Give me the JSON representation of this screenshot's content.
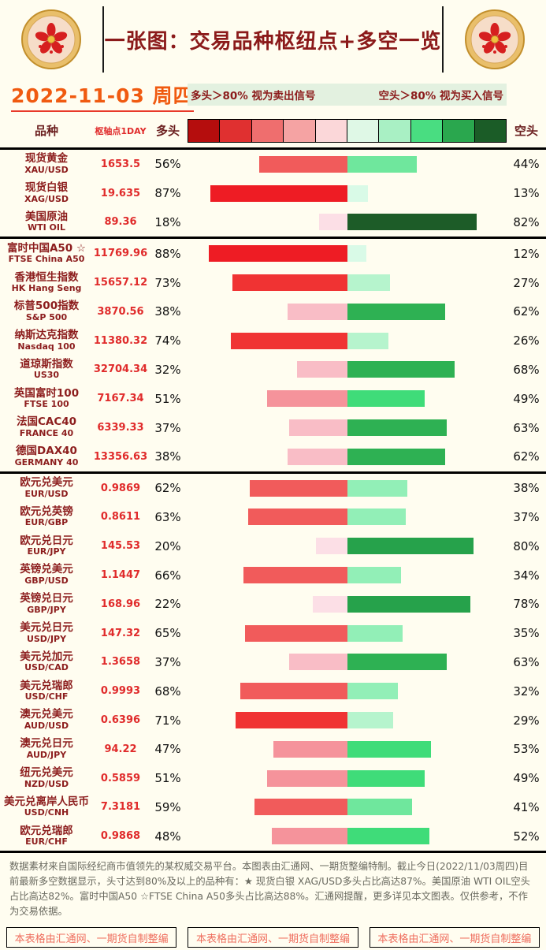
{
  "header": {
    "title": "一张图：交易品种枢纽点+多空一览",
    "date": "2022-11-03 周四",
    "legend_long": "多头＞80% 视为卖出信号",
    "legend_short": "空头＞80% 视为买入信号"
  },
  "columns": {
    "instrument": "品种",
    "pivot": "枢轴点1DAY",
    "long": "多头",
    "short": "空头"
  },
  "colors": {
    "page_bg": "#fffdf0",
    "title": "#8b1a1a",
    "date": "#f05a10",
    "legend_bg": "#e3f1e0",
    "pivot_text": "#e02b2b",
    "name_text": "#8c1d1d",
    "credit_text": "#ef6e5e"
  },
  "color_scale_swatches": [
    "#b50d0d",
    "#e03030",
    "#ef6e6e",
    "#f5a3a3",
    "#fbd7d9",
    "#dff8e6",
    "#a9f0c4",
    "#49dd81",
    "#2aa74e",
    "#1b5c27"
  ],
  "bar_colors": {
    "long": [
      [
        85,
        "#ee1c24"
      ],
      [
        70,
        "#f03333"
      ],
      [
        55,
        "#f15b5b"
      ],
      [
        45,
        "#f5939b"
      ],
      [
        28,
        "#f9bdc6"
      ],
      [
        0,
        "#fcdfe6"
      ]
    ],
    "short": [
      [
        82,
        "#1d5c28"
      ],
      [
        74,
        "#26a24b"
      ],
      [
        56,
        "#2eb153"
      ],
      [
        45,
        "#3fdc79"
      ],
      [
        40,
        "#6fe79d"
      ],
      [
        30,
        "#92efb7"
      ],
      [
        18,
        "#b6f4cd"
      ],
      [
        0,
        "#d9fae7"
      ]
    ]
  },
  "chart_data": {
    "type": "bar",
    "title": "一张图：交易品种枢纽点+多空一览",
    "value_range": [
      0,
      100
    ],
    "legend_position": "top",
    "series_labels": {
      "long": "多头",
      "short": "空头"
    },
    "sections": [
      {
        "rows": [
          {
            "name": "现货黄金",
            "code": "XAU/USD",
            "pivot": "1653.5",
            "long": 56,
            "short": 44
          },
          {
            "name": "现货白银",
            "code": "XAG/USD",
            "pivot": "19.635",
            "long": 87,
            "short": 13
          },
          {
            "name": "美国原油",
            "code": "WTI OIL",
            "pivot": "89.36",
            "long": 18,
            "short": 82
          }
        ]
      },
      {
        "rows": [
          {
            "name": "富时中国A50 ☆",
            "code": "FTSE China A50",
            "pivot": "11769.96",
            "long": 88,
            "short": 12
          },
          {
            "name": "香港恒生指数",
            "code": "HK Hang Seng",
            "pivot": "15657.12",
            "long": 73,
            "short": 27
          },
          {
            "name": "标普500指数",
            "code": "S&P 500",
            "pivot": "3870.56",
            "long": 38,
            "short": 62
          },
          {
            "name": "纳斯达克指数",
            "code": "Nasdaq 100",
            "pivot": "11380.32",
            "long": 74,
            "short": 26
          },
          {
            "name": "道琼斯指数",
            "code": "US30",
            "pivot": "32704.34",
            "long": 32,
            "short": 68
          },
          {
            "name": "英国富时100",
            "code": "FTSE 100",
            "pivot": "7167.34",
            "long": 51,
            "short": 49
          },
          {
            "name": "法国CAC40",
            "code": "FRANCE 40",
            "pivot": "6339.33",
            "long": 37,
            "short": 63
          },
          {
            "name": "德国DAX40",
            "code": "GERMANY 40",
            "pivot": "13356.63",
            "long": 38,
            "short": 62
          }
        ]
      },
      {
        "rows": [
          {
            "name": "欧元兑美元",
            "code": "EUR/USD",
            "pivot": "0.9869",
            "long": 62,
            "short": 38
          },
          {
            "name": "欧元兑英镑",
            "code": "EUR/GBP",
            "pivot": "0.8611",
            "long": 63,
            "short": 37
          },
          {
            "name": "欧元兑日元",
            "code": "EUR/JPY",
            "pivot": "145.53",
            "long": 20,
            "short": 80
          },
          {
            "name": "英镑兑美元",
            "code": "GBP/USD",
            "pivot": "1.1447",
            "long": 66,
            "short": 34
          },
          {
            "name": "英镑兑日元",
            "code": "GBP/JPY",
            "pivot": "168.96",
            "long": 22,
            "short": 78
          },
          {
            "name": "美元兑日元",
            "code": "USD/JPY",
            "pivot": "147.32",
            "long": 65,
            "short": 35
          },
          {
            "name": "美元兑加元",
            "code": "USD/CAD",
            "pivot": "1.3658",
            "long": 37,
            "short": 63
          },
          {
            "name": "美元兑瑞郎",
            "code": "USD/CHF",
            "pivot": "0.9993",
            "long": 68,
            "short": 32
          },
          {
            "name": "澳元兑美元",
            "code": "AUD/USD",
            "pivot": "0.6396",
            "long": 71,
            "short": 29
          },
          {
            "name": "澳元兑日元",
            "code": "AUD/JPY",
            "pivot": "94.22",
            "long": 47,
            "short": 53
          },
          {
            "name": "纽元兑美元",
            "code": "NZD/USD",
            "pivot": "0.5859",
            "long": 51,
            "short": 49
          },
          {
            "name": "美元兑离岸人民币",
            "code": "USD/CNH",
            "pivot": "7.3181",
            "long": 59,
            "short": 41
          },
          {
            "name": "欧元兑瑞郎",
            "code": "EUR/CHF",
            "pivot": "0.9868",
            "long": 48,
            "short": 52
          }
        ]
      }
    ]
  },
  "footer": {
    "note": "数据素材来自国际经纪商市值领先的某权威交易平台。本图表由汇通网、一期货整编特制。截止今日(2022/11/03周四)目前最新多空数据显示，头寸达到80%及以上的品种有：★ 现货白银 XAG/USD多头占比高达87%。美国原油 WTI OIL空头占比高达82%。富时中国A50 ☆FTSE China A50多头占比高达88%。汇通网提醒，更多详见本文图表。仅供参考，不作为交易依据。",
    "credits": [
      "本表格由汇通网、一期货自制整编",
      "本表格由汇通网、一期货自制整编",
      "本表格由汇通网、一期货自制整编"
    ]
  }
}
